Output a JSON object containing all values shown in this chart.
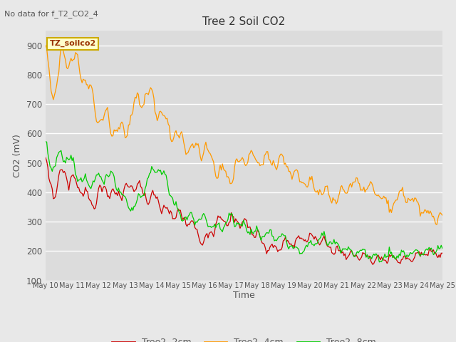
{
  "title": "Tree 2 Soil CO2",
  "subtitle": "No data for f_T2_CO2_4",
  "xlabel": "Time",
  "ylabel": "CO2 (mV)",
  "ylim": [
    100,
    950
  ],
  "yticks": [
    100,
    200,
    300,
    400,
    500,
    600,
    700,
    800,
    900
  ],
  "fig_bg_color": "#e8e8e8",
  "plot_bg_color": "#dcdcdc",
  "legend_label": "TZ_soilco2",
  "legend_box_color": "#ffffcc",
  "legend_box_edge": "#ccaa00",
  "line_colors": {
    "2cm": "#cc0000",
    "4cm": "#ff9900",
    "8cm": "#00cc00"
  },
  "xtick_labels": [
    "May 10",
    "May 11",
    "May 12",
    "May 13",
    "May 14",
    "May 15",
    "May 16",
    "May 17",
    "May 18",
    "May 19",
    "May 20",
    "May 21",
    "May 22",
    "May 23",
    "May 24",
    "May 25"
  ],
  "n_days": 15,
  "n_points": 360
}
